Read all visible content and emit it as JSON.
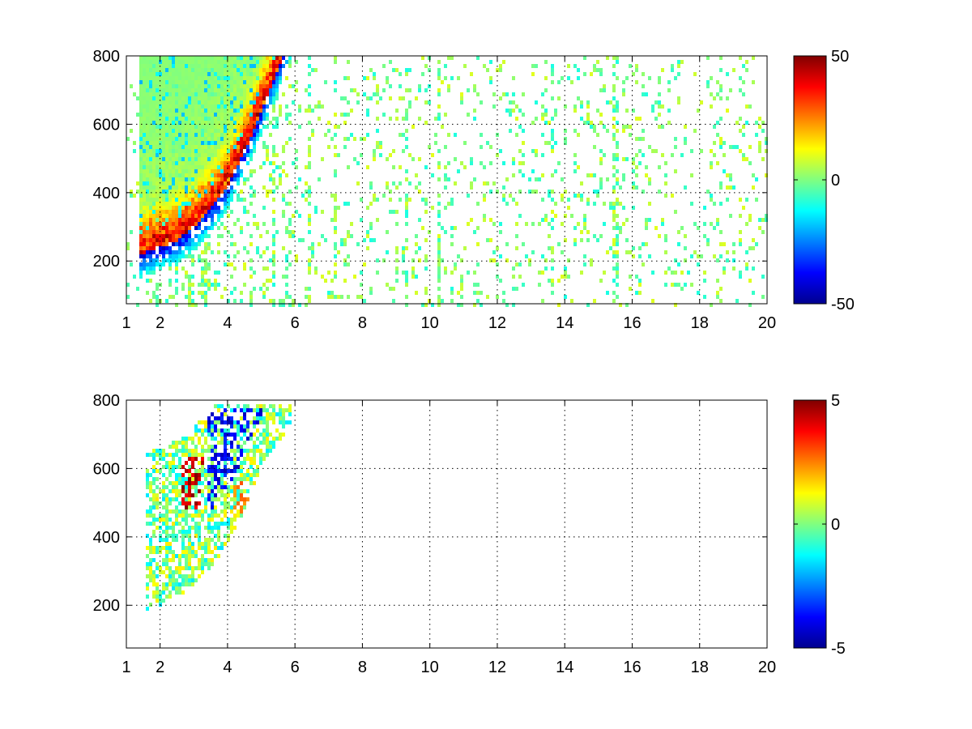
{
  "chart_data": [
    {
      "type": "heatmap",
      "title": "",
      "xlabel": "",
      "ylabel": "",
      "xlim": [
        1,
        20
      ],
      "ylim": [
        75,
        800
      ],
      "xticks": [
        1,
        2,
        4,
        6,
        8,
        10,
        12,
        14,
        16,
        18,
        20
      ],
      "yticks": [
        200,
        400,
        600,
        800
      ],
      "grid": true,
      "colormap": "jet",
      "colorbar": {
        "range": [
          -50,
          50
        ],
        "ticks": [
          -50,
          0,
          50
        ],
        "position": "right"
      },
      "structure": {
        "ridge": {
          "x": [
            1.7,
            2.5,
            3.0,
            3.5,
            4.0,
            4.5,
            5.0,
            5.6
          ],
          "y": [
            230,
            260,
            300,
            350,
            420,
            520,
            640,
            790
          ]
        },
        "positive_side_peak": 40,
        "negative_side_peak": -45,
        "sparse_region_x": [
          6,
          20
        ],
        "sparse_values": [
          -10,
          10
        ],
        "vertical_bands_x": [
          1.9,
          2.9,
          3.3,
          5.4,
          6.4,
          7.2,
          9.3,
          10.3,
          13.6,
          15.5
        ]
      }
    },
    {
      "type": "heatmap",
      "title": "",
      "xlabel": "",
      "ylabel": "",
      "xlim": [
        1,
        20
      ],
      "ylim": [
        75,
        800
      ],
      "xticks": [
        1,
        2,
        4,
        6,
        8,
        10,
        12,
        14,
        16,
        18,
        20
      ],
      "yticks": [
        200,
        400,
        600,
        800
      ],
      "grid": true,
      "colormap": "jet",
      "colorbar": {
        "range": [
          -5,
          5
        ],
        "ticks": [
          -5,
          0,
          5
        ],
        "position": "right"
      },
      "structure": {
        "ridge": {
          "x": [
            1.7,
            2.5,
            3.0,
            3.5,
            4.0,
            4.5,
            5.0,
            5.8
          ],
          "y": [
            230,
            260,
            300,
            350,
            420,
            520,
            640,
            760
          ]
        },
        "positive_region": {
          "x": [
            2.6,
            3.3
          ],
          "y": [
            480,
            640
          ],
          "value": 5
        },
        "negative_region": {
          "x": [
            3.4,
            5.0
          ],
          "y": [
            450,
            780
          ],
          "value": -4.5
        },
        "positive_band": {
          "x": [
            4.2,
            5.2
          ],
          "y": [
            300,
            560
          ],
          "value": 3
        },
        "content_x_extent": [
          1.6,
          5.9
        ]
      }
    }
  ]
}
